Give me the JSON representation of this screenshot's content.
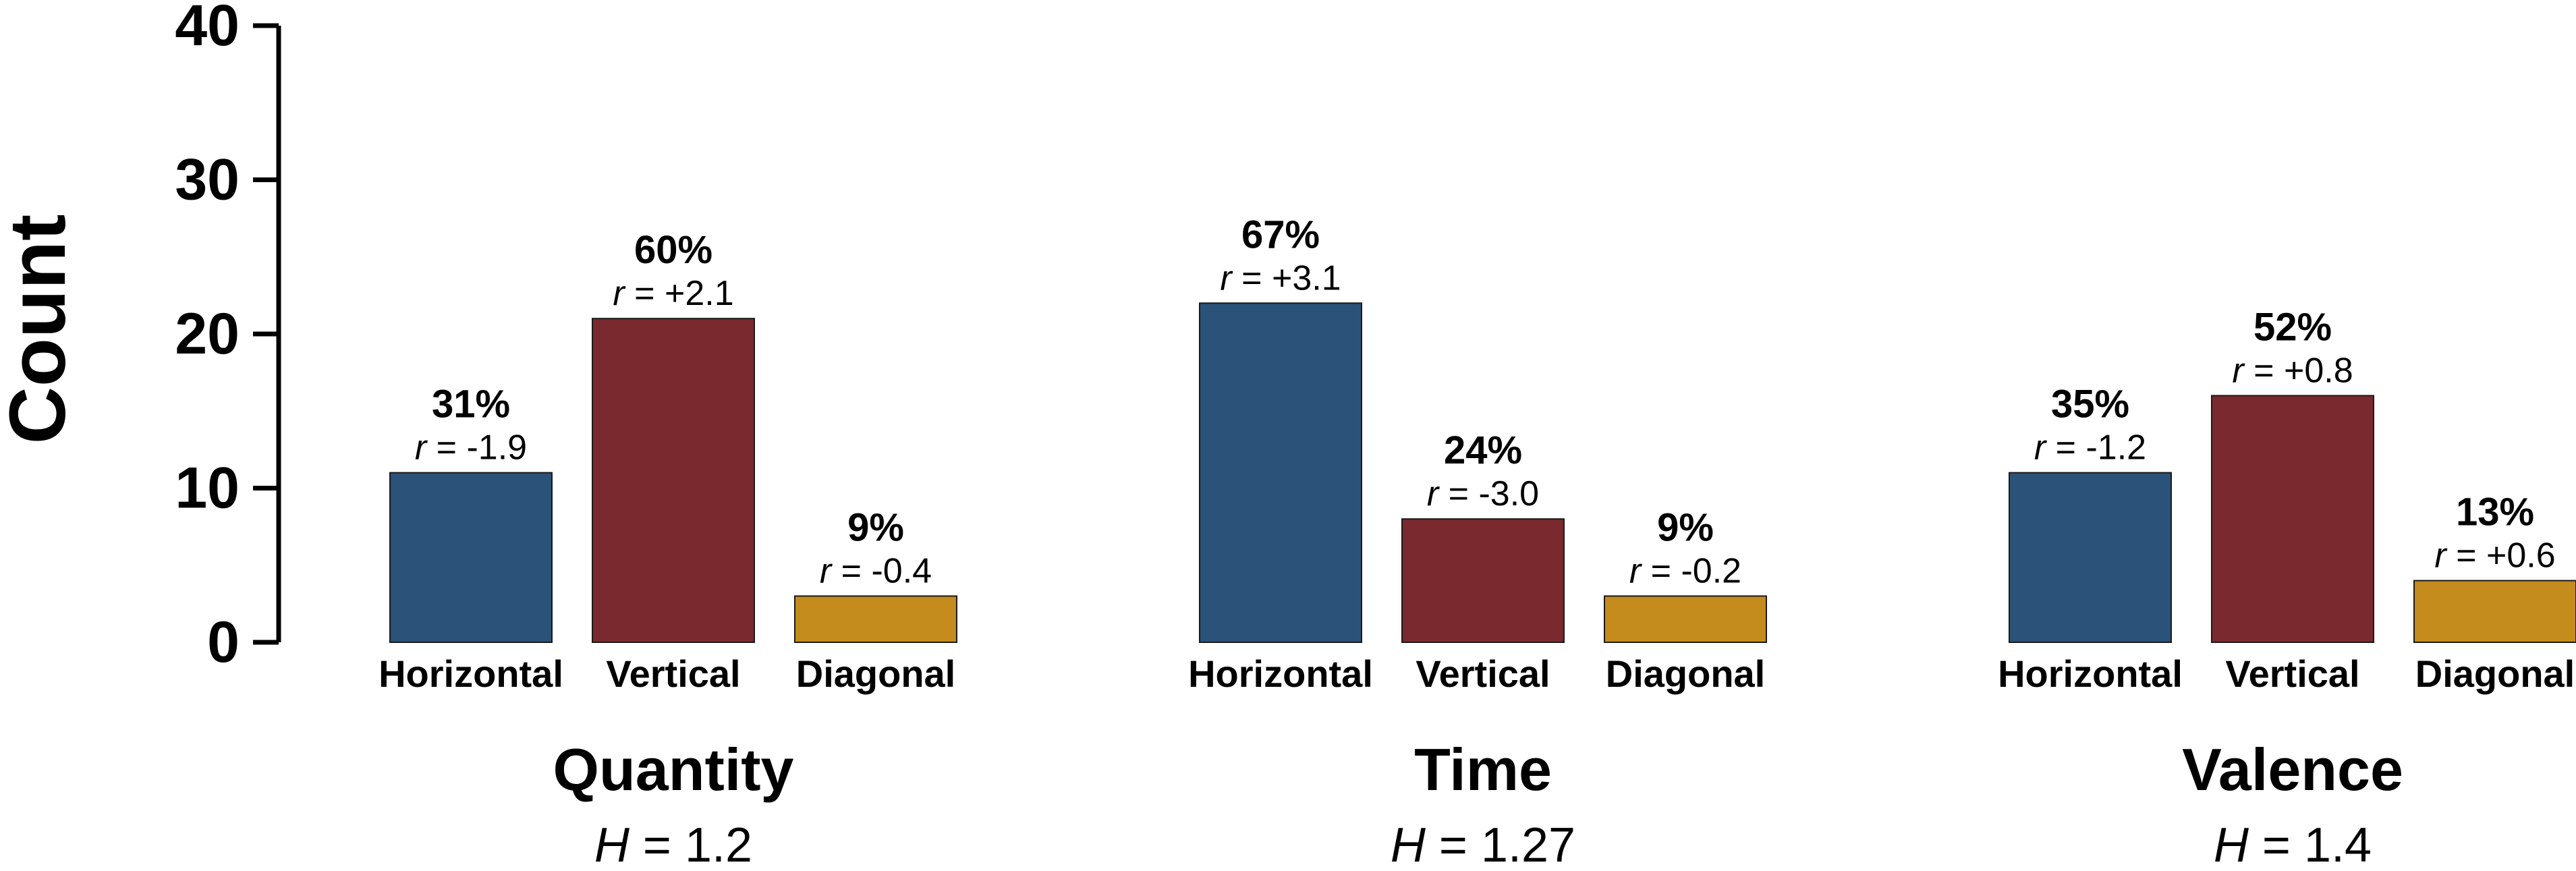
{
  "chart_data": {
    "type": "bar",
    "ylabel": "Count",
    "ylim": [
      0,
      40
    ],
    "yticks": [
      0,
      10,
      20,
      30,
      40
    ],
    "colors": {
      "Horizontal": "#2b5279",
      "Vertical": "#7a2a2f",
      "Diagonal": "#c48b1d"
    },
    "groups": [
      {
        "title": "Quantity",
        "h_symbol": "H",
        "h_value": "= 1.2",
        "bars": [
          {
            "category": "Horizontal",
            "value": 11,
            "pct": "31%",
            "r_symbol": "r",
            "r_value": "= -1.9"
          },
          {
            "category": "Vertical",
            "value": 21,
            "pct": "60%",
            "r_symbol": "r",
            "r_value": "= +2.1"
          },
          {
            "category": "Diagonal",
            "value": 3,
            "pct": "9%",
            "r_symbol": "r",
            "r_value": "= -0.4"
          }
        ]
      },
      {
        "title": "Time",
        "h_symbol": "H",
        "h_value": "= 1.27",
        "bars": [
          {
            "category": "Horizontal",
            "value": 22,
            "pct": "67%",
            "r_symbol": "r",
            "r_value": "= +3.1"
          },
          {
            "category": "Vertical",
            "value": 8,
            "pct": "24%",
            "r_symbol": "r",
            "r_value": "= -3.0"
          },
          {
            "category": "Diagonal",
            "value": 3,
            "pct": "9%",
            "r_symbol": "r",
            "r_value": "= -0.2"
          }
        ]
      },
      {
        "title": "Valence",
        "h_symbol": "H",
        "h_value": "= 1.4",
        "bars": [
          {
            "category": "Horizontal",
            "value": 11,
            "pct": "35%",
            "r_symbol": "r",
            "r_value": "= -1.2"
          },
          {
            "category": "Vertical",
            "value": 16,
            "pct": "52%",
            "r_symbol": "r",
            "r_value": "= +0.8"
          },
          {
            "category": "Diagonal",
            "value": 4,
            "pct": "13%",
            "r_symbol": "r",
            "r_value": "= +0.6"
          }
        ]
      }
    ]
  }
}
